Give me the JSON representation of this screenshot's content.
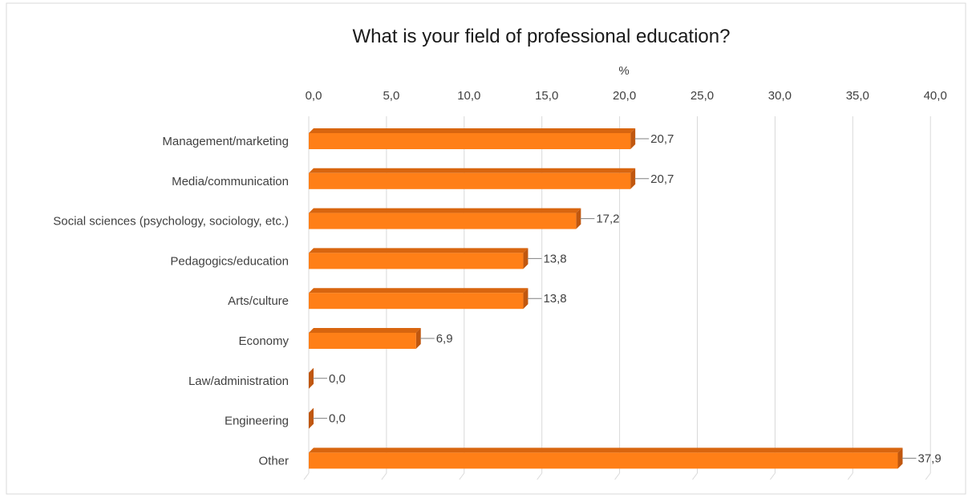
{
  "chart_data": {
    "type": "bar",
    "title": "What is your field of professional education?",
    "xlabel": "%",
    "xlim": [
      0,
      40
    ],
    "x_ticks": [
      "0,0",
      "5,0",
      "10,0",
      "15,0",
      "20,0",
      "25,0",
      "30,0",
      "35,0",
      "40,0"
    ],
    "categories": [
      "Management/marketing",
      "Media/communication",
      "Social sciences (psychology, sociology, etc.)",
      "Pedagogics/education",
      "Arts/culture",
      "Economy",
      "Law/administration",
      "Engineering",
      "Other"
    ],
    "values": [
      20.7,
      20.7,
      17.2,
      13.8,
      13.8,
      6.9,
      0.0,
      0.0,
      37.9
    ],
    "value_labels": [
      "20,7",
      "20,7",
      "17,2",
      "13,8",
      "13,8",
      "6,9",
      "0,0",
      "0,0",
      "37,9"
    ],
    "grid": true,
    "colors": {
      "bar": "#FF7F17",
      "bar_side": "#C0570F",
      "bar_top": "#D8650F",
      "text": "#404040",
      "grid": "#D9D9D9"
    }
  }
}
